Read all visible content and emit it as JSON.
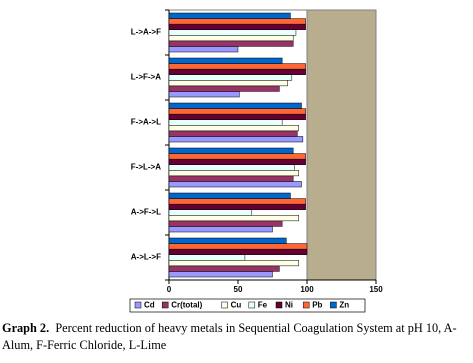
{
  "chart_data": {
    "type": "bar",
    "orientation": "horizontal",
    "categories": [
      "L->A->F",
      "L->F->A",
      "F->A->L",
      "F->L->A",
      "A->F->L",
      "A->L->F"
    ],
    "series": [
      {
        "name": "Cd",
        "color": "#9999ff",
        "values": [
          50,
          51,
          97,
          96,
          75,
          75
        ]
      },
      {
        "name": "Cr(total)",
        "color": "#993366",
        "values": [
          90,
          80,
          93,
          90,
          82,
          80
        ]
      },
      {
        "name": "Cu",
        "color": "#ffffe6",
        "values": [
          90,
          86,
          94,
          94,
          94,
          94
        ]
      },
      {
        "name": "Fe",
        "color": "#e6ffff",
        "values": [
          92,
          89,
          82,
          91,
          60,
          55
        ]
      },
      {
        "name": "Ni",
        "color": "#660033",
        "values": [
          99,
          99,
          99,
          99,
          99,
          100
        ]
      },
      {
        "name": "Pb",
        "color": "#ff6633",
        "values": [
          99,
          99,
          99,
          99,
          99,
          100
        ]
      },
      {
        "name": "Zn",
        "color": "#0066cc",
        "values": [
          88,
          82,
          96,
          90,
          88,
          85
        ]
      }
    ],
    "xlim": [
      0,
      150
    ],
    "xticks": [
      0,
      50,
      100,
      150
    ],
    "grid": false,
    "legend": "bottom",
    "caption_label": "Graph 2.",
    "caption": "Percent reduction of heavy metals in Sequential Coagulation System at pH 10, A-Alum, F-Ferric Chloride, L-Lime"
  }
}
